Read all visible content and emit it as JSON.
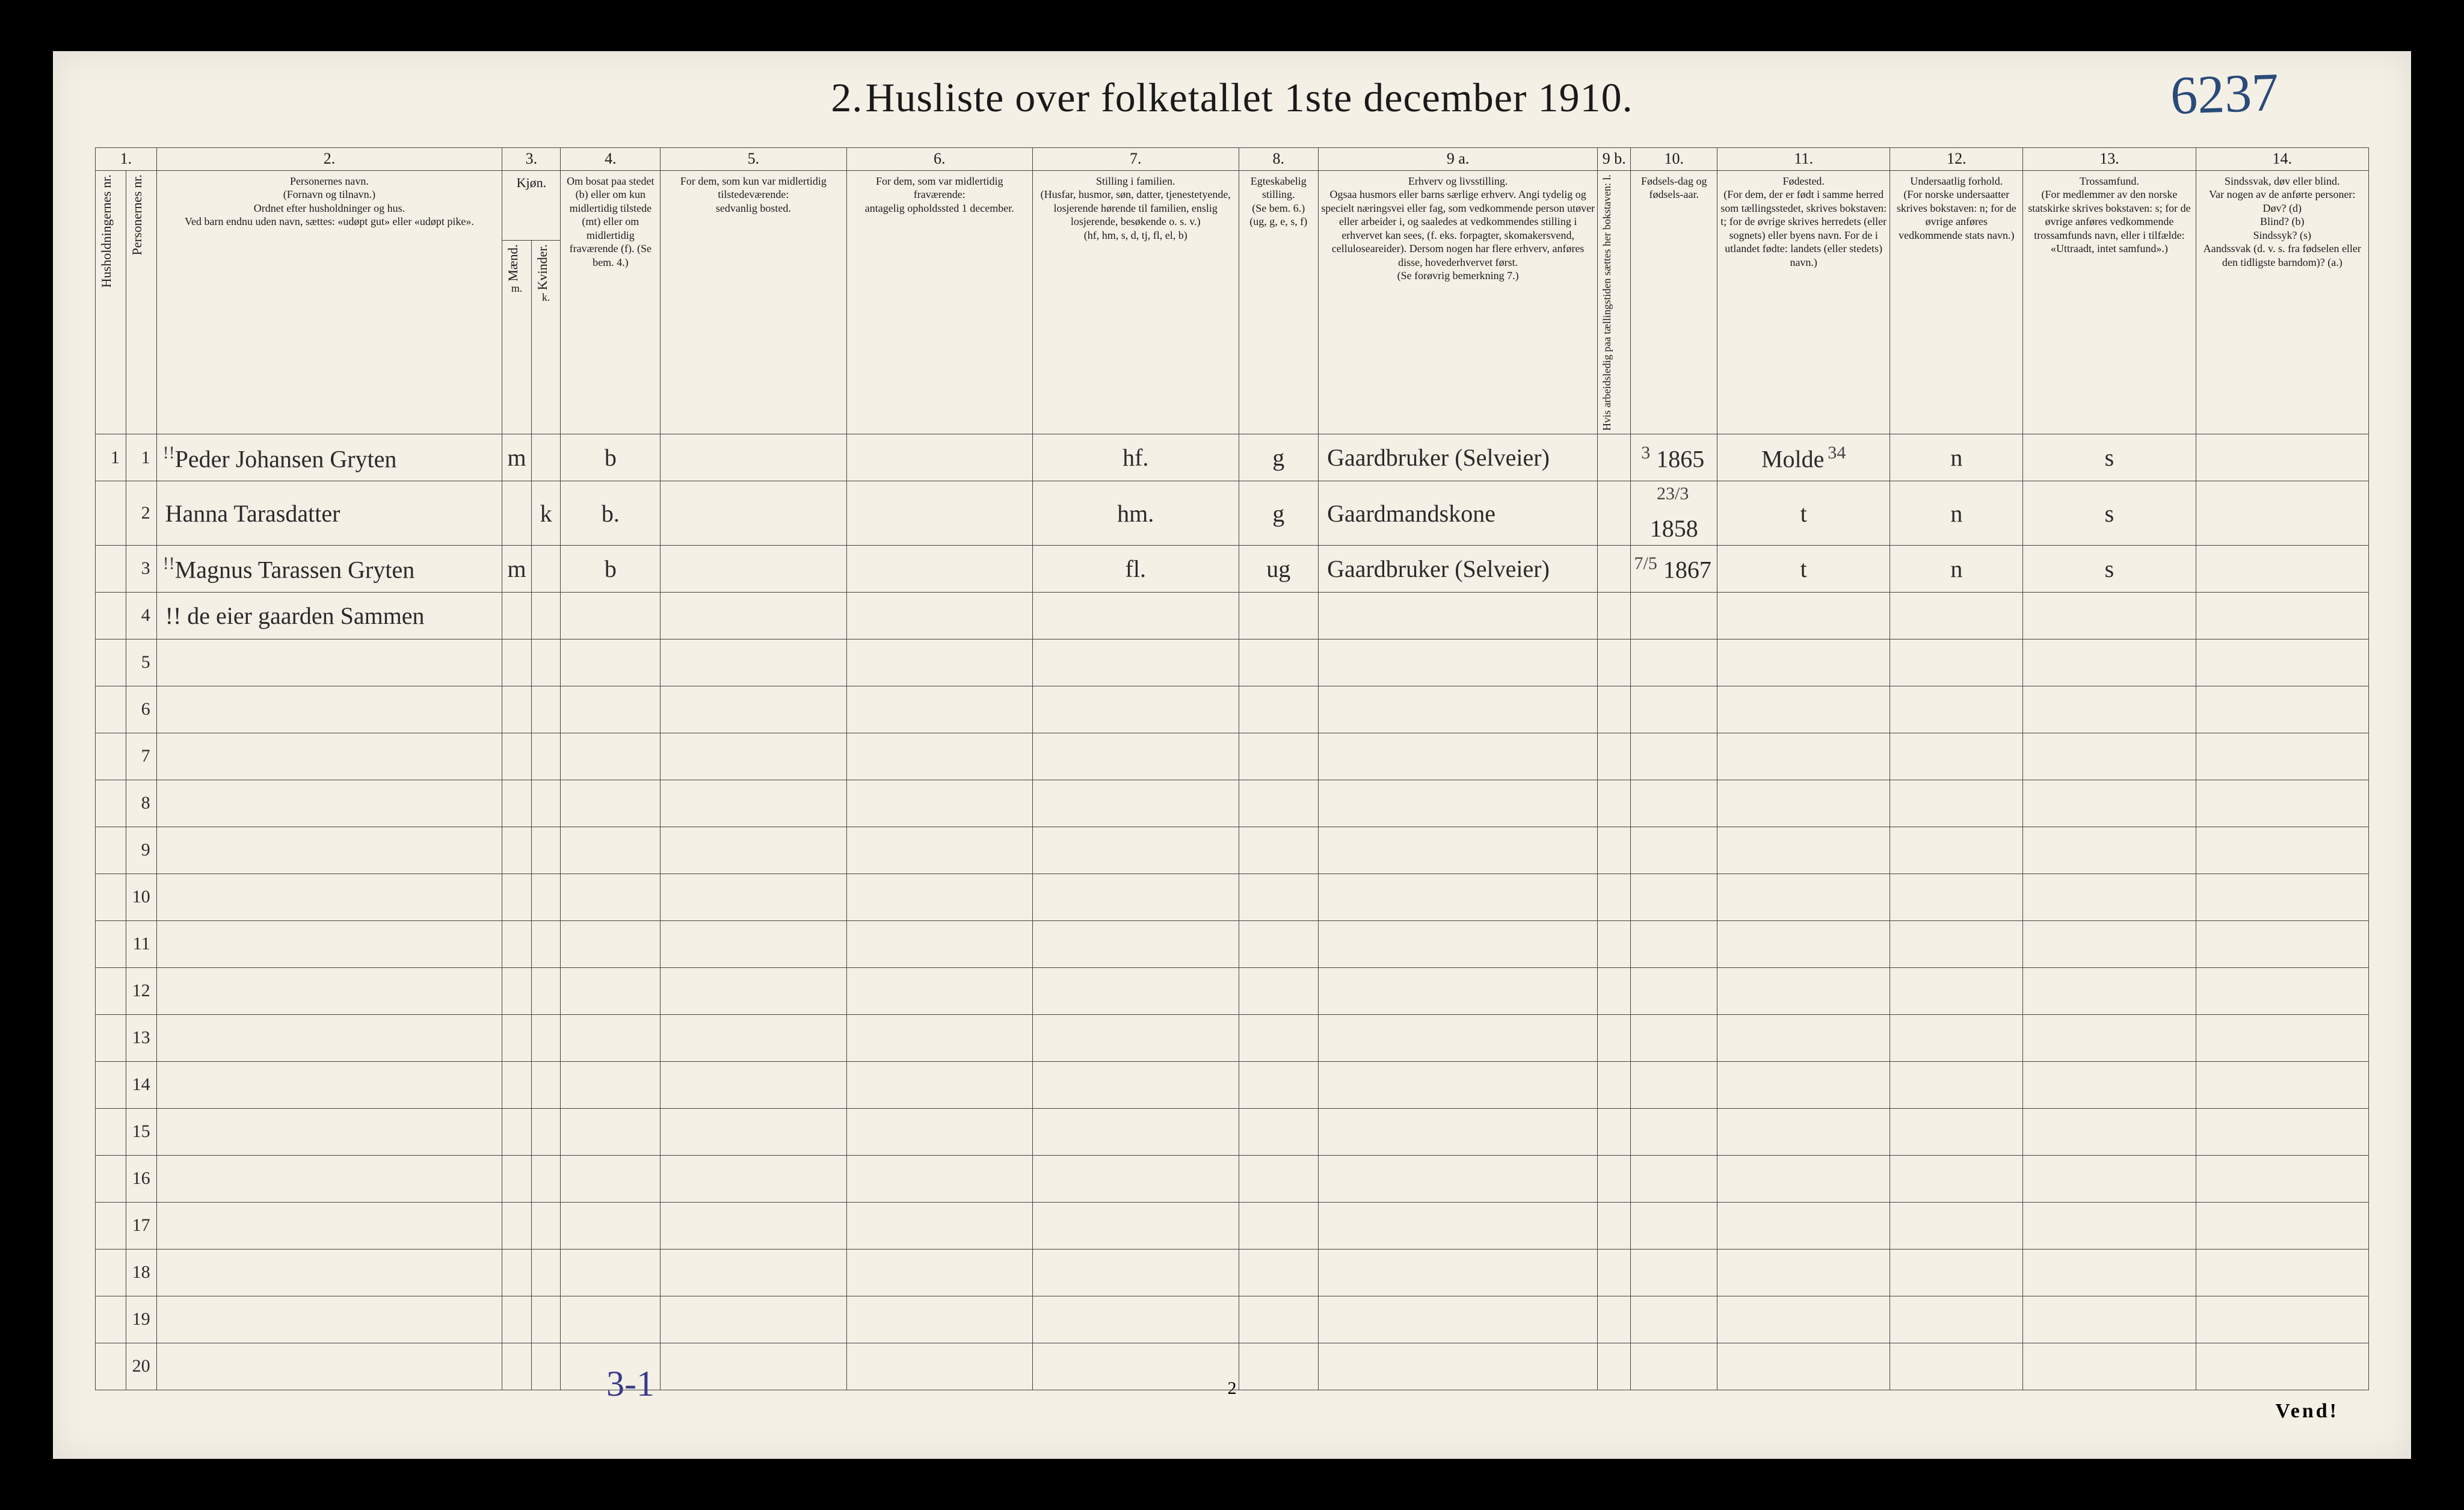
{
  "title_prefix": "2.",
  "title_text": "Husliste over folketallet 1ste december 1910.",
  "handwritten_top": "6237",
  "handwritten_bottom": "3-1",
  "page_number": "2",
  "vend_text": "Vend!",
  "column_numbers": [
    "1.",
    "2.",
    "3.",
    "4.",
    "5.",
    "6.",
    "7.",
    "8.",
    "9 a.",
    "9 b.",
    "10.",
    "11.",
    "12.",
    "13.",
    "14."
  ],
  "headers": {
    "hh": "Husholdningernes nr.",
    "pn": "Personernes nr.",
    "name": "Personernes navn.\n(Fornavn og tilnavn.)\nOrdnet efter husholdninger og hus.\nVed barn endnu uden navn, sættes: «udøpt gut» eller «udøpt pike».",
    "kjon": "Kjøn.",
    "m": "Mænd.",
    "k": "Kvinder.",
    "m_sub": "m.",
    "k_sub": "k.",
    "bosat": "Om bosat paa stedet (b) eller om kun midlertidig tilstede (mt) eller om midlertidig fraværende (f). (Se bem. 4.)",
    "col5": "For dem, som kun var midlertidig tilstedeværende:\nsedvanlig bosted.",
    "col6": "For dem, som var midlertidig fraværende:\nantagelig opholdssted 1 december.",
    "col7": "Stilling i familien.\n(Husfar, husmor, søn, datter, tjenestetyende, losjerende hørende til familien, enslig losjerende, besøkende o. s. v.)\n(hf, hm, s, d, tj, fl, el, b)",
    "col8": "Egteskabelig stilling.\n(Se bem. 6.)\n(ug, g, e, s, f)",
    "col9a": "Erhverv og livsstilling.\nOgsaa husmors eller barns særlige erhverv. Angi tydelig og specielt næringsvei eller fag, som vedkommende person utøver eller arbeider i, og saaledes at vedkommendes stilling i erhvervet kan sees, (f. eks. forpagter, skomakersvend, celluloseareider). Dersom nogen har flere erhverv, anføres disse, hovederhvervet først.\n(Se forøvrig bemerkning 7.)",
    "col9b": "Hvis arbeidsledig paa tællingstiden sættes her bokstaven: l.",
    "col10": "Fødsels-dag og fødsels-aar.",
    "col11": "Fødested.\n(For dem, der er født i samme herred som tællingsstedet, skrives bokstaven: t; for de øvrige skrives herredets (eller sognets) eller byens navn. For de i utlandet fødte: landets (eller stedets) navn.)",
    "col12": "Undersaatlig forhold.\n(For norske undersaatter skrives bokstaven: n; for de øvrige anføres vedkommende stats navn.)",
    "col13": "Trossamfund.\n(For medlemmer av den norske statskirke skrives bokstaven: s; for de øvrige anføres vedkommende trossamfunds navn, eller i tilfælde: «Uttraadt, intet samfund».)",
    "col14": "Sindssvak, døv eller blind.\nVar nogen av de anførte personer:\nDøv? (d)\nBlind? (b)\nSindssyk? (s)\nAandssvak (d. v. s. fra fødselen eller den tidligste barndom)? (a.)"
  },
  "rows": [
    {
      "hh": "1",
      "pn": "1",
      "name_prefix": "!!",
      "name": "Peder Johansen Gryten",
      "m": "m",
      "k": "",
      "bosat": "b",
      "col5": "",
      "col6": "",
      "col7": "hf.",
      "col8": "g",
      "col9a": "Gaardbruker (Selveier)",
      "col9b": "",
      "col10_day": "3",
      "col10_year": "1865",
      "col11": "Molde",
      "col11_sup": "34",
      "col12": "n",
      "col13": "s",
      "col14": ""
    },
    {
      "hh": "",
      "pn": "2",
      "name_prefix": "",
      "name": "Hanna Tarasdatter",
      "m": "",
      "k": "k",
      "bosat": "b.",
      "col5": "",
      "col6": "",
      "col7": "hm.",
      "col8": "g",
      "col9a": "Gaardmandskone",
      "col9b": "",
      "col10_day": "23/3",
      "col10_year": "1858",
      "col11": "t",
      "col11_sup": "",
      "col12": "n",
      "col13": "s",
      "col14": ""
    },
    {
      "hh": "",
      "pn": "3",
      "name_prefix": "!!",
      "name": "Magnus Tarassen Gryten",
      "m": "m",
      "k": "",
      "bosat": "b",
      "col5": "",
      "col6": "",
      "col7": "fl.",
      "col8": "ug",
      "col9a": "Gaardbruker (Selveier)",
      "col9b": "",
      "col10_day": "7/5",
      "col10_year": "1867",
      "col11": "t",
      "col11_sup": "",
      "col12": "n",
      "col13": "s",
      "col14": ""
    },
    {
      "hh": "",
      "pn": "4",
      "name_prefix": "",
      "name": "!! de eier gaarden Sammen",
      "m": "",
      "k": "",
      "bosat": "",
      "col5": "",
      "col6": "",
      "col7": "",
      "col8": "",
      "col9a": "",
      "col9b": "",
      "col10_day": "",
      "col10_year": "",
      "col11": "",
      "col11_sup": "",
      "col12": "",
      "col13": "",
      "col14": ""
    }
  ],
  "empty_row_start": 5,
  "empty_row_end": 20,
  "colors": {
    "paper": "#f4f0e6",
    "ink": "#1a1a1a",
    "border": "#444444",
    "handwriting": "#2a2a2a",
    "blue_pencil": "#2a4a7a",
    "purple_pencil": "#3a3a8a"
  }
}
